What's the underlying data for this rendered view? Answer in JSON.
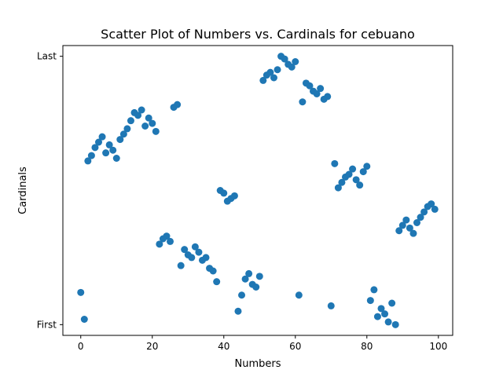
{
  "chart_data": {
    "type": "scatter",
    "title": "Scatter Plot of Numbers vs. Cardinals for cebuano",
    "xlabel": "Numbers",
    "ylabel": "Cardinals",
    "xlim": [
      -5,
      104
    ],
    "ylim": [
      -4,
      104
    ],
    "xticks": [
      0,
      20,
      40,
      60,
      80,
      100
    ],
    "xtick_labels": [
      "0",
      "20",
      "40",
      "60",
      "80",
      "100"
    ],
    "yticks": [
      0,
      100
    ],
    "ytick_labels": [
      "First",
      "Last"
    ],
    "grid": false,
    "legend": "none",
    "color": "#1f77b4",
    "x": [
      0,
      1,
      2,
      3,
      4,
      5,
      6,
      7,
      8,
      9,
      10,
      11,
      12,
      13,
      14,
      15,
      16,
      17,
      18,
      19,
      20,
      21,
      22,
      23,
      24,
      25,
      26,
      27,
      28,
      29,
      30,
      31,
      32,
      33,
      34,
      35,
      36,
      37,
      38,
      39,
      40,
      41,
      42,
      43,
      44,
      45,
      46,
      47,
      48,
      49,
      50,
      51,
      52,
      53,
      54,
      55,
      56,
      57,
      58,
      59,
      60,
      61,
      62,
      63,
      64,
      65,
      66,
      67,
      68,
      69,
      70,
      71,
      72,
      73,
      74,
      75,
      76,
      77,
      78,
      79,
      80,
      81,
      82,
      83,
      84,
      85,
      86,
      87,
      88,
      89,
      90,
      91,
      92,
      93,
      94,
      95,
      96,
      97,
      98,
      99
    ],
    "y": [
      12,
      2,
      61,
      63,
      66,
      68,
      70,
      64,
      67,
      65,
      62,
      69,
      71,
      73,
      76,
      79,
      78,
      80,
      74,
      77,
      75,
      72,
      30,
      32,
      33,
      31,
      81,
      82,
      22,
      28,
      26,
      25,
      29,
      27,
      24,
      25,
      21,
      20,
      16,
      50,
      49,
      46,
      47,
      48,
      5,
      11,
      17,
      19,
      15,
      14,
      18,
      91,
      93,
      94,
      92,
      95,
      100,
      99,
      97,
      96,
      98,
      11,
      83,
      90,
      89,
      87,
      86,
      88,
      84,
      85,
      7,
      60,
      51,
      53,
      55,
      56,
      58,
      54,
      52,
      57,
      59,
      9,
      13,
      3,
      6,
      4,
      1,
      8,
      0,
      35,
      37,
      39,
      36,
      34,
      38,
      40,
      42,
      44,
      45,
      43
    ]
  }
}
